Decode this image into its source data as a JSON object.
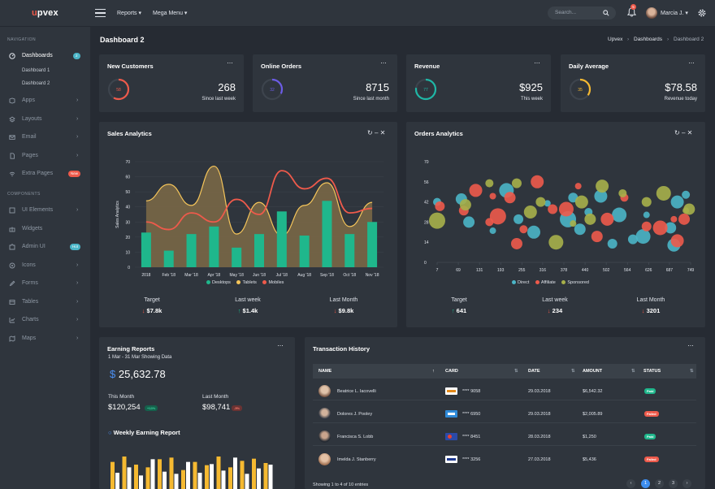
{
  "brand": {
    "u": "u",
    "rest": "pvex"
  },
  "topnav": {
    "reports": "Reports",
    "mega": "Mega Menu"
  },
  "search": {
    "placeholder": "Search..."
  },
  "notifications": {
    "count": "5"
  },
  "user": {
    "name": "Marcia J."
  },
  "sidebar": {
    "nav_header": "NAVIGATION",
    "components_header": "COMPONENTS",
    "dashboards": {
      "label": "Dashboards",
      "badge": "2"
    },
    "sub": [
      "Dashboard 1",
      "Dashboard 2"
    ],
    "items": [
      "Apps",
      "Layouts",
      "Email",
      "Pages",
      "Extra Pages"
    ],
    "extra_badge": "New",
    "components": [
      "UI Elements",
      "Widgets",
      "Admin UI",
      "Icons",
      "Forms",
      "Tables",
      "Charts",
      "Maps"
    ],
    "admin_badge": "Hot"
  },
  "page": {
    "title": "Dashboard 2",
    "crumbs": [
      "Upvex",
      "Dashboards",
      "Dashboard 2"
    ]
  },
  "kpis": [
    {
      "title": "New Customers",
      "pct": "58",
      "value": "268",
      "sub": "Since last week",
      "color": "#ee5a4b",
      "frac": 0.58
    },
    {
      "title": "Online Orders",
      "pct": "32",
      "value": "8715",
      "sub": "Since last month",
      "color": "#6c5ce7",
      "frac": 0.32
    },
    {
      "title": "Revenue",
      "pct": "77",
      "value": "$925",
      "sub": "This week",
      "color": "#1fb7a6",
      "frac": 0.77
    },
    {
      "title": "Daily Average",
      "pct": "35",
      "value": "$78.58",
      "sub": "Revenue today",
      "color": "#f5b931",
      "frac": 0.35
    }
  ],
  "sales": {
    "title": "Sales Analytics",
    "legend": [
      "Desktops",
      "Tablets",
      "Mobiles"
    ],
    "stats": [
      {
        "t": "Target",
        "v": "$7.8k",
        "dir": "down"
      },
      {
        "t": "Last week",
        "v": "$1.4k",
        "dir": "up"
      },
      {
        "t": "Last Month",
        "v": "$9.8k",
        "dir": "down"
      }
    ]
  },
  "orders": {
    "title": "Orders Analytics",
    "legend": [
      "Direct",
      "Affiliate",
      "Sponsored"
    ],
    "stats": [
      {
        "t": "Target",
        "v": "641",
        "dir": "up"
      },
      {
        "t": "Last week",
        "v": "234",
        "dir": "down"
      },
      {
        "t": "Last Month",
        "v": "3201",
        "dir": "down"
      }
    ]
  },
  "earning": {
    "title": "Earning Reports",
    "range": "1 Mar - 31 Mar Showing Data",
    "currency": "$",
    "total": "25,632.78",
    "this_label": "This Month",
    "this_val": "$120,254",
    "this_badge": "+13%",
    "last_label": "Last Month",
    "last_val": "$98,741",
    "last_badge": "-5%",
    "weekly": "Weekly Earning Report"
  },
  "transactions": {
    "title": "Transaction History",
    "headers": [
      "NAME",
      "CARD",
      "DATE",
      "AMOUNT",
      "STATUS"
    ],
    "rows": [
      {
        "name": "Beatrice L. Iacovelli",
        "card": "**** 9058",
        "date": "29.03.2018",
        "amount": "$6,542.32",
        "status": "Paid"
      },
      {
        "name": "Dolores J. Pooley",
        "card": "**** 6950",
        "date": "29.03.2018",
        "amount": "$2,005.89",
        "status": "Failed"
      },
      {
        "name": "Francisca S. Lobb",
        "card": "**** 8451",
        "date": "28.03.2018",
        "amount": "$1,250",
        "status": "Paid"
      },
      {
        "name": "Imelda J. Stanberry",
        "card": "**** 3256",
        "date": "27.03.2018",
        "amount": "$5,436",
        "status": "Failed"
      }
    ],
    "footer": "Showing 1 to 4 of 10 entries",
    "pages": [
      "‹",
      "1",
      "2",
      "3",
      "›"
    ]
  },
  "chart_data": [
    {
      "type": "bar",
      "title": "Sales Analytics",
      "ylabel": "Sales Analytics",
      "ylim": [
        0,
        70
      ],
      "yticks": [
        "0",
        "10",
        "20",
        "30",
        "40",
        "50",
        "60",
        "70"
      ],
      "categories": [
        "2018",
        "Feb '18",
        "Mar '18",
        "Apr '18",
        "May '18",
        "Jun '18",
        "Jul '18",
        "Aug '18",
        "Sep '18",
        "Oct '18",
        "Nov '18"
      ],
      "series": [
        {
          "name": "Desktops",
          "type": "bar",
          "color": "#1fb78c",
          "values": [
            23,
            11,
            22,
            27,
            13,
            22,
            37,
            21,
            44,
            22,
            30
          ]
        },
        {
          "name": "Tablets",
          "type": "area",
          "color": "#f5c55a",
          "values": [
            44,
            55,
            41,
            67,
            22,
            43,
            21,
            41,
            56,
            27,
            43
          ]
        },
        {
          "name": "Mobiles",
          "type": "line",
          "color": "#ee5a4b",
          "values": [
            30,
            25,
            36,
            30,
            45,
            35,
            64,
            52,
            59,
            36,
            39
          ]
        }
      ],
      "legend": "bottom"
    },
    {
      "type": "scatter",
      "title": "Orders Analytics",
      "xlim": [
        7,
        749
      ],
      "ylim": [
        0,
        70
      ],
      "xticks": [
        "7",
        "69",
        "131",
        "193",
        "255",
        "316",
        "378",
        "440",
        "502",
        "564",
        "626",
        "687",
        "749"
      ],
      "yticks": [
        "0",
        "14",
        "28",
        "42",
        "56",
        "70"
      ],
      "series": [
        {
          "name": "Direct",
          "color": "#4bb5c7",
          "points": [
            [
              7,
              42
            ],
            [
              78,
              44
            ],
            [
              210,
              50
            ],
            [
              245,
              30
            ],
            [
              290,
              21
            ],
            [
              330,
              41
            ],
            [
              390,
              30
            ],
            [
              425,
              23
            ],
            [
              450,
              35
            ],
            [
              486,
              46
            ],
            [
              520,
              13
            ],
            [
              540,
              33
            ],
            [
              620,
              33
            ],
            [
              690,
              24
            ],
            [
              710,
              42
            ],
            [
              735,
              47
            ],
            [
              580,
              16
            ],
            [
              610,
              18
            ],
            [
              170,
              22
            ],
            [
              100,
              28
            ],
            [
              405,
              45
            ],
            [
              700,
              12
            ]
          ]
        },
        {
          "name": "Affiliate",
          "color": "#ee5a4b",
          "points": [
            [
              15,
              39
            ],
            [
              120,
              50
            ],
            [
              170,
              46
            ],
            [
              185,
              32
            ],
            [
              220,
              45
            ],
            [
              260,
              23
            ],
            [
              300,
              56
            ],
            [
              345,
              37
            ],
            [
              385,
              37
            ],
            [
              420,
              53
            ],
            [
              475,
              18
            ],
            [
              505,
              30
            ],
            [
              555,
              45
            ],
            [
              620,
              25
            ],
            [
              660,
              24
            ],
            [
              700,
              30
            ],
            [
              730,
              30
            ],
            [
              85,
              36
            ],
            [
              710,
              15
            ],
            [
              160,
              28
            ],
            [
              240,
              13
            ]
          ]
        },
        {
          "name": "Sponsored",
          "color": "#a7b04a",
          "points": [
            [
              7,
              29
            ],
            [
              90,
              40
            ],
            [
              160,
              55
            ],
            [
              280,
              35
            ],
            [
              310,
              42
            ],
            [
              355,
              14
            ],
            [
              405,
              27
            ],
            [
              455,
              30
            ],
            [
              490,
              53
            ],
            [
              550,
              48
            ],
            [
              620,
              42
            ],
            [
              670,
              48
            ],
            [
              735,
              36
            ],
            [
              745,
              37
            ],
            [
              240,
              55
            ],
            [
              430,
              42
            ]
          ]
        }
      ],
      "legend": "bottom"
    },
    {
      "type": "bar",
      "title": "Weekly Earning Report",
      "series": [
        {
          "name": "s1",
          "color": "#f5b931",
          "values": [
            50,
            60,
            45,
            40,
            55,
            58,
            35,
            50,
            44,
            60,
            40,
            52,
            56,
            48
          ]
        },
        {
          "name": "s2",
          "color": "#ffffff",
          "values": [
            30,
            40,
            25,
            55,
            32,
            28,
            50,
            30,
            46,
            34,
            58,
            28,
            38,
            45
          ]
        }
      ]
    }
  ]
}
